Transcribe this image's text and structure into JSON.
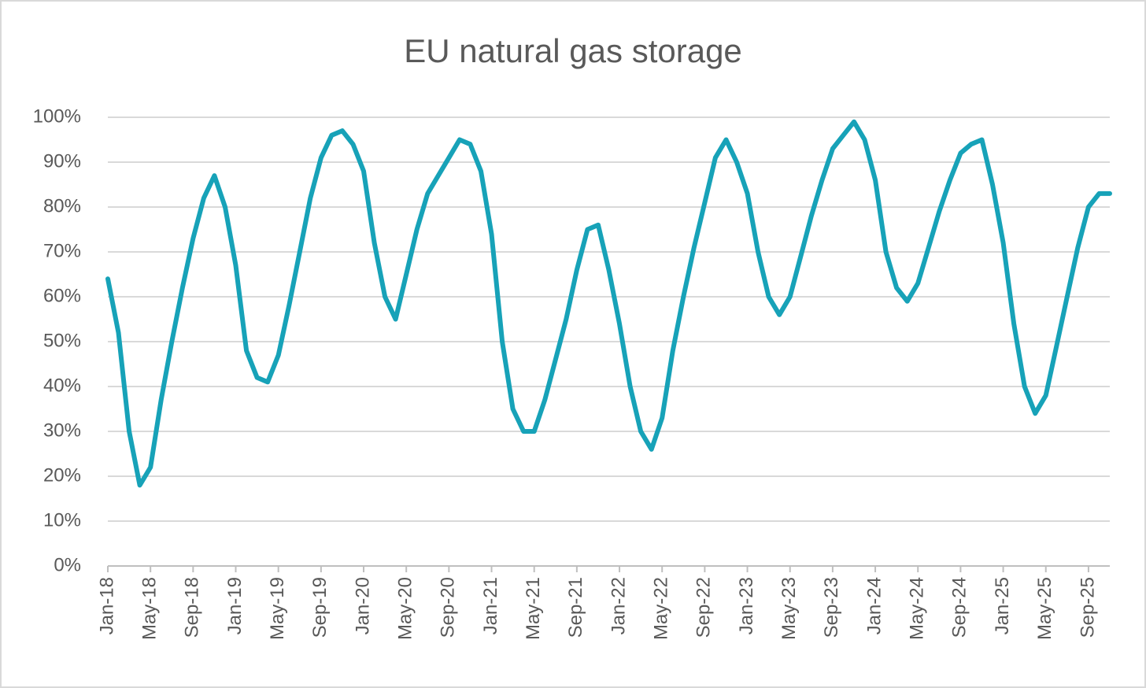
{
  "chart_data": {
    "type": "line",
    "title": "EU natural gas storage",
    "categories": [
      "Jan-18",
      null,
      null,
      null,
      "May-18",
      null,
      null,
      null,
      "Sep-18",
      null,
      null,
      null,
      "Jan-19",
      null,
      null,
      null,
      "May-19",
      null,
      null,
      null,
      "Sep-19",
      null,
      null,
      null,
      "Jan-20",
      null,
      null,
      null,
      "May-20",
      null,
      null,
      null,
      "Sep-20",
      null,
      null,
      null,
      "Jan-21",
      null,
      null,
      null,
      "May-21",
      null,
      null,
      null,
      "Sep-21",
      null,
      null,
      null,
      "Jan-22",
      null,
      null,
      null,
      "May-22",
      null,
      null,
      null,
      "Sep-22",
      null,
      null,
      null,
      "Jan-23",
      null,
      null,
      null,
      "May-23",
      null,
      null,
      null,
      "Sep-23",
      null,
      null,
      null,
      "Jan-24",
      null,
      null,
      null,
      "May-24",
      null,
      null,
      null,
      "Sep-24",
      null,
      null,
      null,
      "Jan-25",
      null,
      null,
      null,
      "May-25",
      null,
      null,
      null,
      "Sep-25",
      null,
      null
    ],
    "series": [
      {
        "color": "#17a2b8",
        "values": [
          64,
          52,
          30,
          18,
          22,
          37,
          50,
          62,
          73,
          82,
          87,
          80,
          67,
          48,
          42,
          41,
          47,
          58,
          70,
          82,
          91,
          96,
          97,
          94,
          88,
          72,
          60,
          55,
          65,
          75,
          83,
          87,
          91,
          95,
          94,
          88,
          74,
          50,
          35,
          30,
          30,
          37,
          46,
          55,
          66,
          75,
          76,
          66,
          54,
          40,
          30,
          26,
          33,
          48,
          60,
          71,
          81,
          91,
          95,
          90,
          83,
          70,
          60,
          56,
          60,
          69,
          78,
          86,
          93,
          96,
          99,
          95,
          86,
          70,
          62,
          59,
          63,
          71,
          79,
          86,
          92,
          94,
          95,
          85,
          72,
          54,
          40,
          34,
          38,
          49,
          60,
          71,
          80,
          83,
          83
        ]
      }
    ],
    "ylim": [
      0,
      100
    ],
    "yticks": [
      {
        "value": 0,
        "label": "0%"
      },
      {
        "value": 10,
        "label": "10%"
      },
      {
        "value": 20,
        "label": "20%"
      },
      {
        "value": 30,
        "label": "30%"
      },
      {
        "value": 40,
        "label": "40%"
      },
      {
        "value": 50,
        "label": "50%"
      },
      {
        "value": 60,
        "label": "60%"
      },
      {
        "value": 70,
        "label": "70%"
      },
      {
        "value": 80,
        "label": "80%"
      },
      {
        "value": 90,
        "label": "90%"
      },
      {
        "value": 100,
        "label": "100%"
      }
    ],
    "grid": true
  }
}
